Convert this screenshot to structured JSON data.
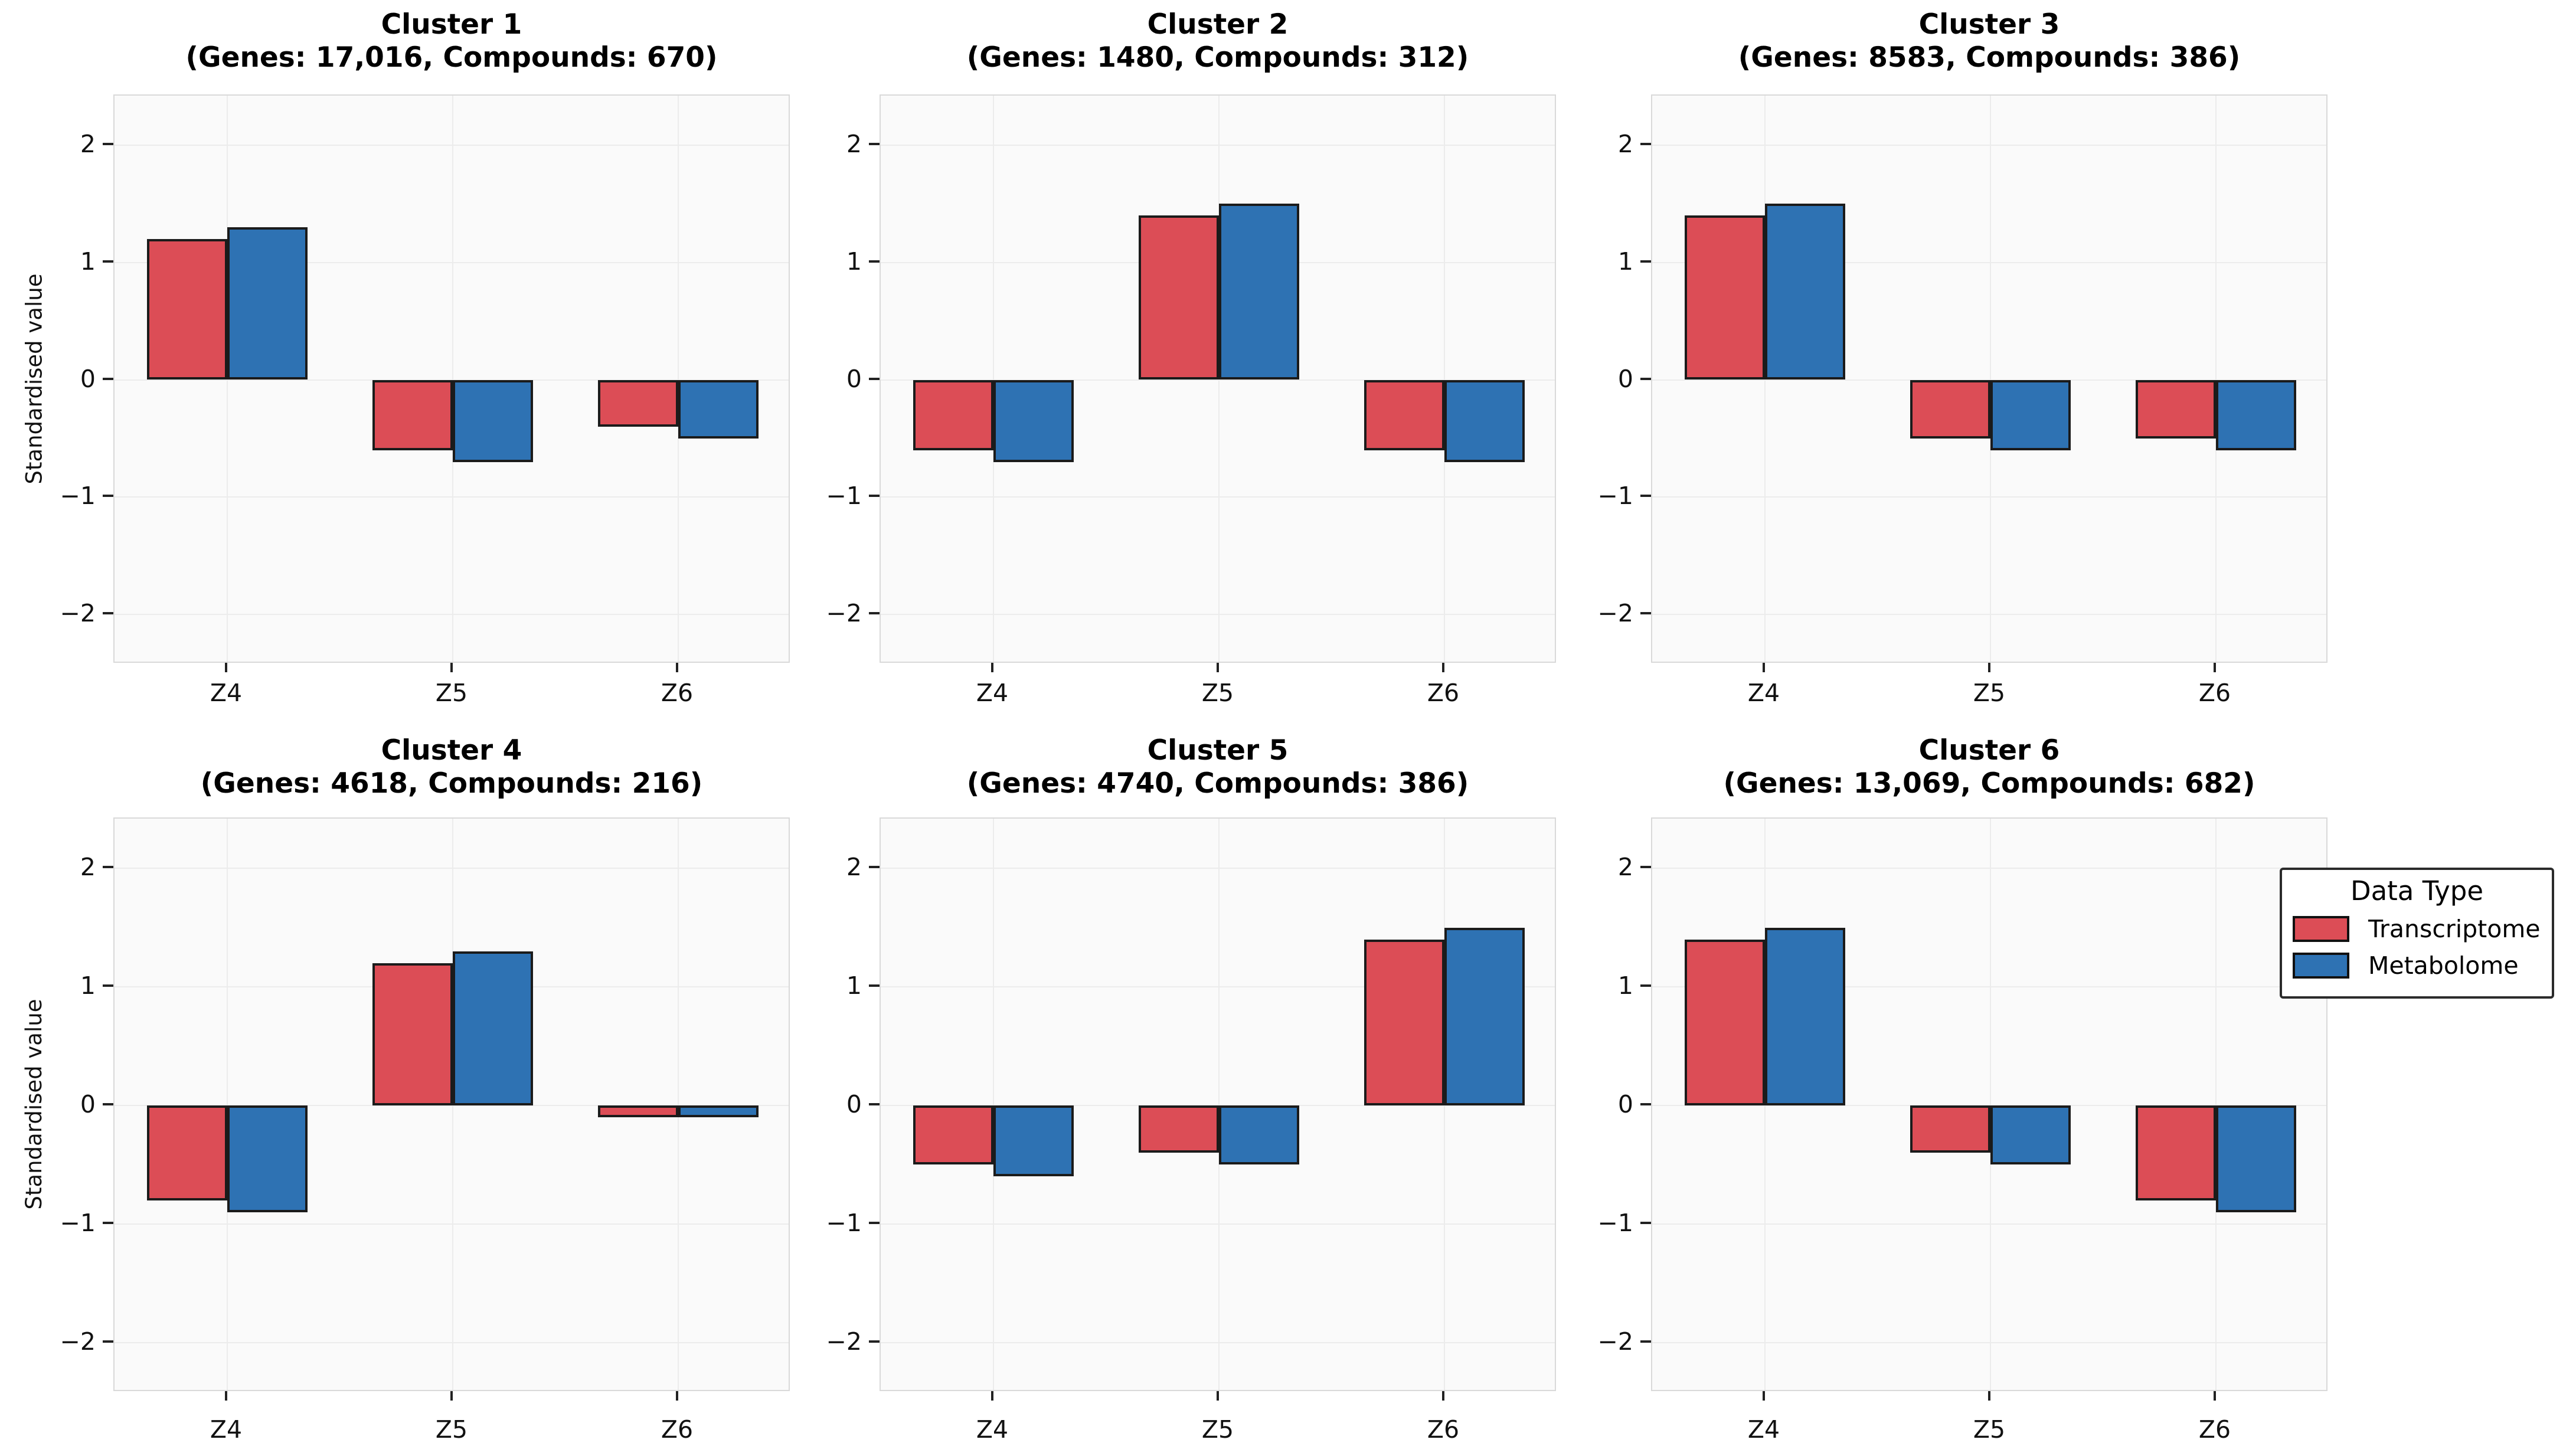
{
  "figure": {
    "ylabel": "Standardised value",
    "categories": [
      "Z4",
      "Z5",
      "Z6"
    ],
    "ytick_labels": [
      "2",
      "1",
      "0",
      "−1",
      "−2"
    ]
  },
  "legend": {
    "title": "Data Type",
    "items": [
      {
        "label": "Transcriptome",
        "color": "#dc4d56"
      },
      {
        "label": "Metabolome",
        "color": "#2e72b3"
      }
    ]
  },
  "chart_data": {
    "type": "bar",
    "categories": [
      "Z4",
      "Z5",
      "Z6"
    ],
    "xlabel": "",
    "ylabel": "Standardised value",
    "ylim": [
      -2.42,
      2.42
    ],
    "yticks": [
      2,
      1,
      0,
      -1,
      -2
    ],
    "grid": true,
    "legend_position": "right",
    "legend_title": "Data Type",
    "series_names": [
      "Transcriptome",
      "Metabolome"
    ],
    "colors": {
      "Transcriptome": "#dc4d56",
      "Metabolome": "#2e72b3"
    },
    "subplots": [
      {
        "title": "Cluster 1",
        "subtitle": "(Genes: 17,016, Compounds: 670)",
        "series": [
          {
            "name": "Transcriptome",
            "values": [
              1.2,
              -0.6,
              -0.4
            ]
          },
          {
            "name": "Metabolome",
            "values": [
              1.3,
              -0.7,
              -0.5
            ]
          }
        ]
      },
      {
        "title": "Cluster 2",
        "subtitle": "(Genes: 1480, Compounds: 312)",
        "series": [
          {
            "name": "Transcriptome",
            "values": [
              -0.6,
              1.4,
              -0.6
            ]
          },
          {
            "name": "Metabolome",
            "values": [
              -0.7,
              1.5,
              -0.7
            ]
          }
        ]
      },
      {
        "title": "Cluster 3",
        "subtitle": "(Genes: 8583, Compounds: 386)",
        "series": [
          {
            "name": "Transcriptome",
            "values": [
              1.4,
              -0.5,
              -0.5
            ]
          },
          {
            "name": "Metabolome",
            "values": [
              1.5,
              -0.6,
              -0.6
            ]
          }
        ]
      },
      {
        "title": "Cluster 4",
        "subtitle": "(Genes: 4618, Compounds: 216)",
        "series": [
          {
            "name": "Transcriptome",
            "values": [
              -0.8,
              1.2,
              -0.1
            ]
          },
          {
            "name": "Metabolome",
            "values": [
              -0.9,
              1.3,
              -0.1
            ]
          }
        ]
      },
      {
        "title": "Cluster 5",
        "subtitle": "(Genes: 4740, Compounds: 386)",
        "series": [
          {
            "name": "Transcriptome",
            "values": [
              -0.5,
              -0.4,
              1.4
            ]
          },
          {
            "name": "Metabolome",
            "values": [
              -0.6,
              -0.5,
              1.5
            ]
          }
        ]
      },
      {
        "title": "Cluster 6",
        "subtitle": "(Genes: 13,069, Compounds: 682)",
        "series": [
          {
            "name": "Transcriptome",
            "values": [
              1.4,
              -0.4,
              -0.8
            ]
          },
          {
            "name": "Metabolome",
            "values": [
              1.5,
              -0.5,
              -0.9
            ]
          }
        ]
      }
    ]
  }
}
